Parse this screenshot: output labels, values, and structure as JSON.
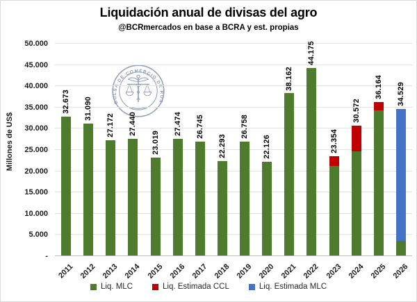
{
  "header": {
    "title": "Liquidación anual de divisas del agro",
    "subtitle": "@BCRmercados en base a BCRA y est. propias"
  },
  "watermark": {
    "text": "BOLSA DE COMERCIO DE ROSARIO"
  },
  "colors": {
    "green": "#4f7b2f",
    "red": "#c00000",
    "blue": "#4472c4",
    "gridline": "#e2e2e2",
    "axis": "#bfbfbf",
    "watermark": "#8a97b4"
  },
  "chart_data": {
    "type": "bar",
    "stacked": true,
    "title": "Liquidación anual de divisas del agro",
    "subtitle": "@BCRmercados en base a BCRA y est. propias",
    "xlabel": "",
    "ylabel": "Millones de US$",
    "ylim": [
      0,
      50000
    ],
    "ytick_step": 5000,
    "ytick_labels": [
      "50.000",
      "45.000",
      "40.000",
      "35.000",
      "30.000",
      "25.000",
      "20.000",
      "15.000",
      "10.000",
      "5.000",
      "-"
    ],
    "grid": true,
    "legend_position": "bottom",
    "categories": [
      "2011",
      "2012",
      "2013",
      "2014",
      "2015",
      "2016",
      "2017",
      "2018",
      "2019",
      "2020",
      "2021",
      "2022",
      "2023",
      "2024",
      "2025",
      "2026"
    ],
    "total_labels": [
      "32.673",
      "31.090",
      "27.172",
      "27.440",
      "23.019",
      "27.474",
      "26.745",
      "22.293",
      "26.758",
      "22.126",
      "38.162",
      "44.175",
      "23.354",
      "30.572",
      "36.164",
      "34.529"
    ],
    "totals": [
      32673,
      31090,
      27172,
      27440,
      23019,
      27474,
      26745,
      22293,
      26758,
      22126,
      38162,
      44175,
      23354,
      30572,
      36164,
      34529
    ],
    "series": [
      {
        "name": "Liq. MLC",
        "color": "#4f7b2f",
        "values": [
          32673,
          31090,
          27172,
          27440,
          23019,
          27474,
          26745,
          22293,
          26758,
          22126,
          38162,
          44175,
          21000,
          24458,
          34114,
          3500
        ]
      },
      {
        "name": "Liq. Estimada CCL",
        "color": "#c00000",
        "values": [
          0,
          0,
          0,
          0,
          0,
          0,
          0,
          0,
          0,
          0,
          0,
          0,
          2354,
          6114,
          2050,
          0
        ]
      },
      {
        "name": "Liq. Estimada MLC",
        "color": "#4472c4",
        "values": [
          0,
          0,
          0,
          0,
          0,
          0,
          0,
          0,
          0,
          0,
          0,
          0,
          0,
          0,
          0,
          31029
        ]
      }
    ]
  }
}
